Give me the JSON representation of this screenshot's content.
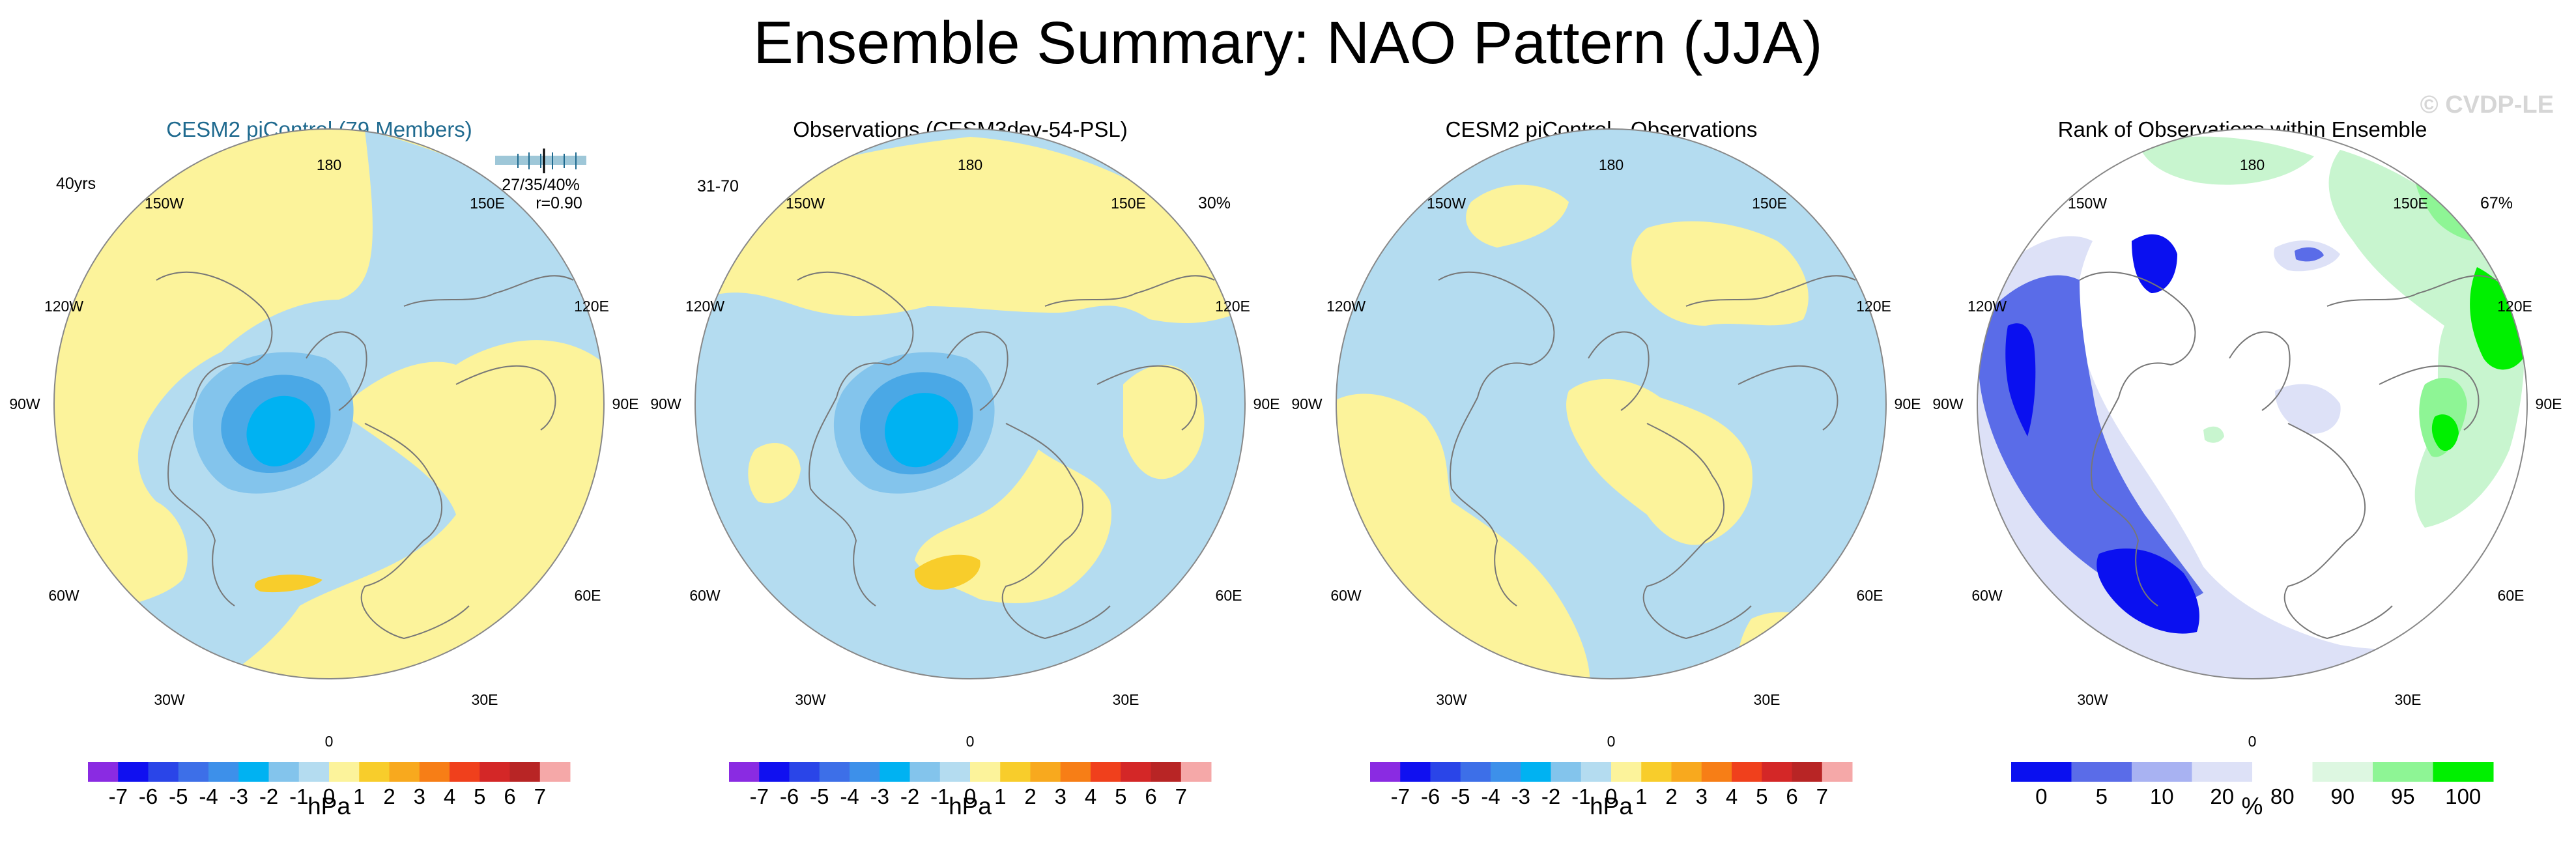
{
  "title": "Ensemble Summary: NAO Pattern (JJA)",
  "watermark": "© CVDP-LE",
  "colors": {
    "land_outline": "#777777",
    "pos1": "#fcf39b",
    "pos2": "#f8cd2b",
    "neg1": "#b4dcf0",
    "neg2": "#83c4ec",
    "neg3": "#4aa8e6",
    "neg4": "#00b2f2",
    "rank_white": "#ffffff",
    "rank_lightblue": "#dde1f7",
    "rank_blue": "#5a6ce8",
    "rank_deepblue": "#0a10f0",
    "rank_lightgreen": "#c8f5cf",
    "rank_green": "#8ef595",
    "rank_brightgreen": "#00f000"
  },
  "longitude_labels": [
    "180",
    "150E",
    "120E",
    "90E",
    "60E",
    "30E",
    "0",
    "30W",
    "60W",
    "90W",
    "120W",
    "150W"
  ],
  "panels": [
    {
      "title": "CESM2 piControl (79 Members)",
      "corner_left": "40yrs",
      "stats": "27/35/40%",
      "correlation": "r=0.90",
      "unit": "hPa"
    },
    {
      "title": "Observations (CESM3dev-54-PSL)",
      "corner_left": "31-70",
      "corner_right": "30%",
      "unit": "hPa"
    },
    {
      "title": "CESM2 piControl - Observations",
      "unit": "hPa"
    },
    {
      "title": "Rank of Observations within Ensemble",
      "corner_right": "67%",
      "unit": "%"
    }
  ],
  "chart_data": [
    {
      "type": "heatmap",
      "title": "CESM2 piControl (79 Members)",
      "projection": "north polar stereographic",
      "unit": "hPa",
      "colorbar": {
        "ticks": [
          "-7",
          "-6",
          "-5",
          "-4",
          "-3",
          "-2",
          "-1",
          "0",
          "1",
          "2",
          "3",
          "4",
          "5",
          "6",
          "7"
        ],
        "colors": [
          "#8a2be2",
          "#1010f0",
          "#2a45e8",
          "#3d6fe8",
          "#3d90ea",
          "#00b2f2",
          "#83c4ec",
          "#b4dcf0",
          "#fcf39b",
          "#f8cd2b",
          "#f8a91e",
          "#f77e16",
          "#f0401c",
          "#d42727",
          "#b82525",
          "#f5a8a8"
        ]
      },
      "field_summary": "Negative center (-3 to -4 hPa) over Greenland/Baffin Bay; weak positive (+2) band south of Iceland"
    },
    {
      "type": "heatmap",
      "title": "Observations (CESM3dev-54-PSL)",
      "projection": "north polar stereographic",
      "unit": "hPa",
      "colorbar": {
        "ticks": [
          "-7",
          "-6",
          "-5",
          "-4",
          "-3",
          "-2",
          "-1",
          "0",
          "1",
          "2",
          "3",
          "4",
          "5",
          "6",
          "7"
        ],
        "colors": [
          "#8a2be2",
          "#1010f0",
          "#2a45e8",
          "#3d6fe8",
          "#3d90ea",
          "#00b2f2",
          "#83c4ec",
          "#b4dcf0",
          "#fcf39b",
          "#f8cd2b",
          "#f8a91e",
          "#f77e16",
          "#f0401c",
          "#d42727",
          "#b82525",
          "#f5a8a8"
        ]
      },
      "field_summary": "Negative center (-3 to -4 hPa) over Greenland; positive (+2) over British Isles/North Sea"
    },
    {
      "type": "heatmap",
      "title": "CESM2 piControl - Observations",
      "projection": "north polar stereographic",
      "unit": "hPa",
      "colorbar": {
        "ticks": [
          "-7",
          "-6",
          "-5",
          "-4",
          "-3",
          "-2",
          "-1",
          "0",
          "1",
          "2",
          "3",
          "4",
          "5",
          "6",
          "7"
        ],
        "colors": [
          "#8a2be2",
          "#1010f0",
          "#2a45e8",
          "#3d6fe8",
          "#3d90ea",
          "#00b2f2",
          "#83c4ec",
          "#b4dcf0",
          "#fcf39b",
          "#f8cd2b",
          "#f8a91e",
          "#f77e16",
          "#f0401c",
          "#d42727",
          "#b82525",
          "#f5a8a8"
        ]
      },
      "field_summary": "Differences within ±1 hPa everywhere"
    },
    {
      "type": "heatmap",
      "title": "Rank of Observations within Ensemble",
      "projection": "north polar stereographic",
      "unit": "%",
      "colorbar": {
        "ticks": [
          "0",
          "5",
          "10",
          "20",
          "80",
          "90",
          "95",
          "100"
        ],
        "colors": [
          "#0a10f0",
          "#5a6ce8",
          "#a8b2f2",
          "#dde1f7",
          "#ffffff",
          "#ddf7e1",
          "#8ef595",
          "#00f000"
        ]
      },
      "field_summary": "Low ranks (0-10%) over North America and the North Atlantic; high ranks (90-100%) over East Asia"
    }
  ]
}
